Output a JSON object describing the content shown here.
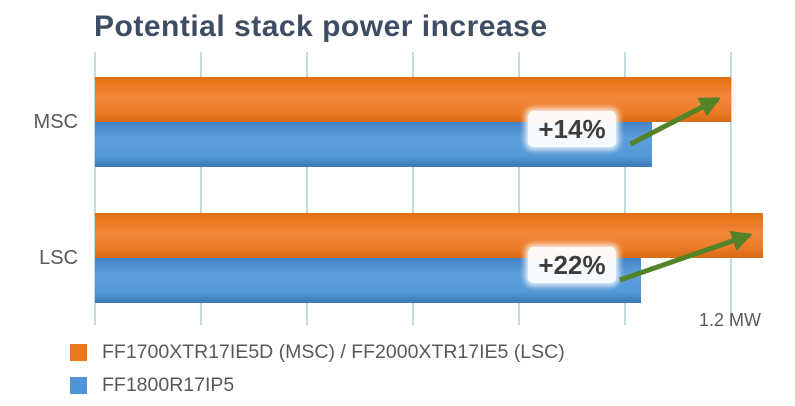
{
  "title": "Potential stack power increase",
  "chart_data": {
    "type": "bar",
    "orientation": "horizontal",
    "title": "Potential stack power increase",
    "categories": [
      "MSC",
      "LSC"
    ],
    "series": [
      {
        "name": "FF1700XTR17IE5D (MSC) / FF2000XTR17IE5 (LSC)",
        "color": "#e8771f",
        "values_mw": [
          1.2,
          1.26
        ]
      },
      {
        "name": "FF1800R17IP5",
        "color": "#4e94d6",
        "values_mw": [
          1.05,
          1.03
        ]
      }
    ],
    "annotations": [
      {
        "category": "MSC",
        "label": "+14%"
      },
      {
        "category": "LSC",
        "label": "+22%"
      }
    ],
    "x_axis": {
      "min": 0,
      "max": 1.2,
      "tick_interval": 0.2,
      "unit": "MW",
      "max_tick_label": "1.2 MW"
    },
    "grid": true,
    "gridline_color": "#c2dbdf",
    "arrow_color": "#538227",
    "legend_position": "bottom-left",
    "xlabel": "",
    "ylabel": ""
  }
}
